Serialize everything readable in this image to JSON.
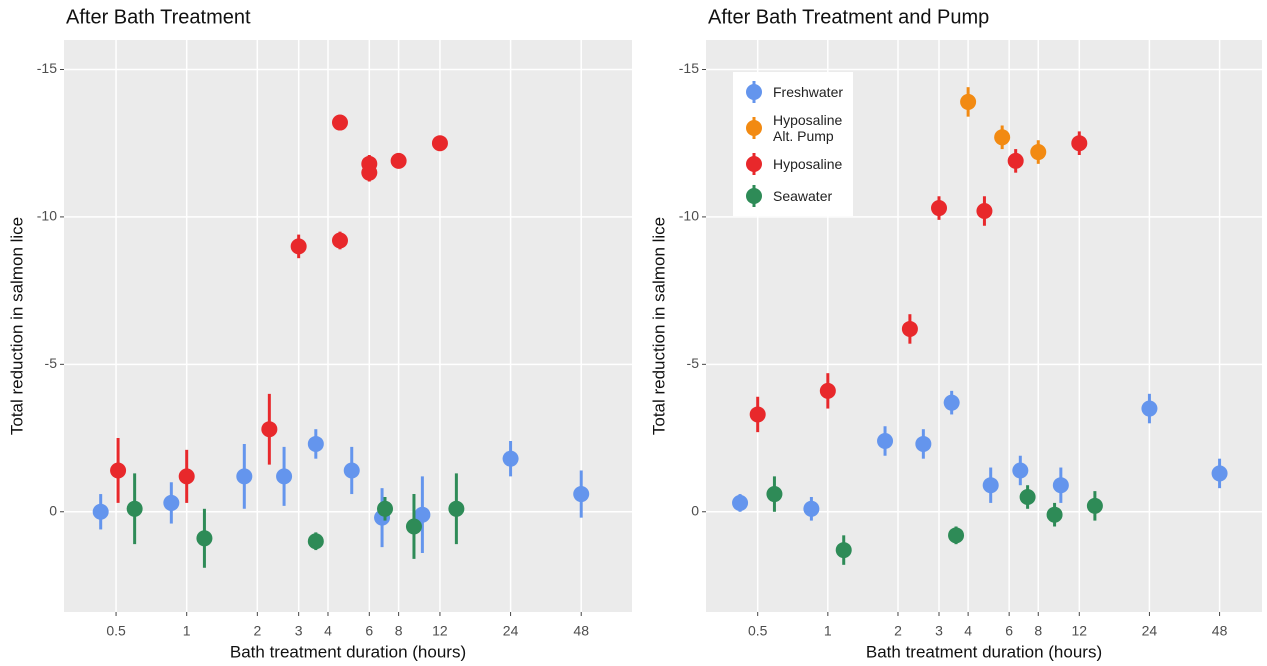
{
  "chart_data": [
    {
      "type": "scatter",
      "title": "After Bath Treatment",
      "xlabel": "Bath treatment duration (hours)",
      "ylabel": "Total reduction in salmon lice",
      "xscale": "log",
      "xlim": [
        0.3,
        79
      ],
      "ylim": [
        3.4,
        -16
      ],
      "xticks": [
        0.5,
        1,
        2,
        3,
        4,
        6,
        8,
        12,
        24,
        48
      ],
      "yticks": [
        -15,
        -10,
        -5,
        0
      ],
      "grid": true,
      "series": [
        {
          "color": "#6495ed",
          "x": [
            0.43,
            0.86,
            1.76,
            2.6,
            3.55,
            5.05,
            6.8,
            10.1,
            24,
            48
          ],
          "values": [
            0,
            -0.3,
            -1.2,
            -1.2,
            -2.3,
            -1.4,
            0.2,
            0.1,
            -1.8,
            -0.6
          ],
          "errors": [
            0.6,
            0.7,
            1.1,
            1.0,
            0.5,
            0.8,
            1.0,
            1.3,
            0.6,
            0.8
          ]
        },
        {
          "color": "#e8282b",
          "x": [
            0.51,
            1.0,
            2.25,
            3,
            4.5,
            4.5,
            6,
            6,
            8,
            12
          ],
          "values": [
            -1.4,
            -1.2,
            -2.8,
            -9.0,
            -9.2,
            -13.2,
            -11.8,
            -11.5,
            -11.9,
            -12.5
          ],
          "errors": [
            1.1,
            0.9,
            1.2,
            0.4,
            0.3,
            0.2,
            0.3,
            0.3,
            0.2,
            0.2
          ]
        },
        {
          "color": "#2e8b57",
          "x": [
            0.6,
            1.19,
            3.55,
            7.0,
            9.3,
            14.1
          ],
          "values": [
            -0.1,
            0.9,
            1.0,
            -0.1,
            0.5,
            -0.1
          ],
          "errors": [
            1.2,
            1.0,
            0.3,
            0.4,
            1.1,
            1.2
          ]
        }
      ]
    },
    {
      "type": "scatter",
      "title": "After Bath Treatment and Pump",
      "xlabel": "Bath treatment duration (hours)",
      "ylabel": "Total reduction in salmon lice",
      "xscale": "log",
      "xlim": [
        0.3,
        73
      ],
      "ylim": [
        3.4,
        -16
      ],
      "xticks": [
        0.5,
        1,
        2,
        3,
        4,
        6,
        8,
        12,
        24,
        48
      ],
      "yticks": [
        -15,
        -10,
        -5,
        0
      ],
      "grid": true,
      "legend": "top-left",
      "series": [
        {
          "name": "Freshwater",
          "color": "#6495ed",
          "x": [
            0.42,
            0.85,
            1.76,
            2.57,
            3.4,
            5.0,
            6.7,
            10,
            24,
            48
          ],
          "values": [
            -0.3,
            -0.1,
            -2.4,
            -2.3,
            -3.7,
            -0.9,
            -1.4,
            -0.9,
            -3.5,
            -1.3
          ],
          "errors": [
            0.3,
            0.4,
            0.5,
            0.5,
            0.4,
            0.6,
            0.5,
            0.6,
            0.5,
            0.5
          ]
        },
        {
          "name": "Hyposaline\nAlt. Pump",
          "color": "#f28a12",
          "x": [
            4,
            5.6,
            8
          ],
          "values": [
            -13.9,
            -12.7,
            -12.2
          ],
          "errors": [
            0.5,
            0.4,
            0.4
          ]
        },
        {
          "name": "Hyposaline",
          "color": "#e8282b",
          "x": [
            0.5,
            1,
            2.25,
            3.0,
            4.7,
            6.4,
            12
          ],
          "values": [
            -3.3,
            -4.1,
            -6.2,
            -10.3,
            -10.2,
            -11.9,
            -12.5
          ],
          "errors": [
            0.6,
            0.6,
            0.5,
            0.4,
            0.5,
            0.4,
            0.4
          ]
        },
        {
          "name": "Seawater",
          "color": "#2e8b57",
          "x": [
            0.59,
            1.17,
            3.55,
            7.2,
            9.4,
            14
          ],
          "values": [
            -0.6,
            1.3,
            0.8,
            -0.5,
            0.1,
            -0.2
          ],
          "errors": [
            0.6,
            0.5,
            0.3,
            0.4,
            0.4,
            0.5
          ]
        }
      ]
    }
  ]
}
